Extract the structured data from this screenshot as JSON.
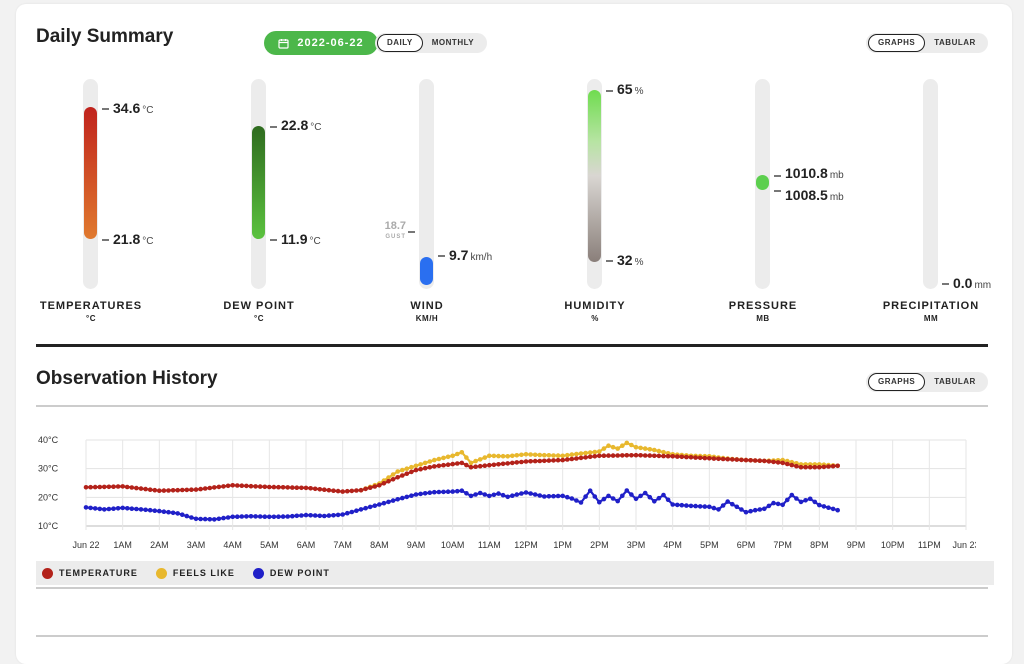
{
  "summary": {
    "title": "Daily Summary",
    "date": "2022-06-22",
    "period_toggle": {
      "daily": "DAILY",
      "monthly": "MONTHLY",
      "selected": "DAILY"
    },
    "view_toggle": {
      "graphs": "GRAPHS",
      "tabular": "TABULAR",
      "selected": "GRAPHS"
    }
  },
  "gauges": [
    {
      "label": "TEMPERATURES",
      "unit_label": "°C",
      "high": "34.6",
      "low": "21.8",
      "unit": "°C",
      "color_top": "#c0231d",
      "color_bottom": "#e07a2f"
    },
    {
      "label": "DEW POINT",
      "unit_label": "°C",
      "high": "22.8",
      "low": "11.9",
      "unit": "°C",
      "color_top": "#2f6b1f",
      "color_bottom": "#5bc23f"
    },
    {
      "label": "WIND",
      "unit_label": "KM/H",
      "value": "9.7",
      "unit": "km/h",
      "gust_value": "18.7",
      "gust_label": "GUST",
      "color": "#2a6ff0"
    },
    {
      "label": "HUMIDITY",
      "unit_label": "%",
      "high": "65",
      "low": "32",
      "unit": "%",
      "color_top": "#6fdc4f",
      "color_bottom": "#8a7f7a"
    },
    {
      "label": "PRESSURE",
      "unit_label": "MB",
      "high": "1010.8",
      "low": "1008.5",
      "unit": "mb",
      "color": "#5ccf4e"
    },
    {
      "label": "PRECIPITATION",
      "unit_label": "MM",
      "value": "0.0",
      "unit": "mm"
    }
  ],
  "history": {
    "title": "Observation History",
    "view_toggle": {
      "graphs": "GRAPHS",
      "tabular": "TABULAR",
      "selected": "GRAPHS"
    }
  },
  "chart_data": {
    "type": "line",
    "x_unit": "hour of Jun 22",
    "x_ticks": [
      "Jun 22",
      "1AM",
      "2AM",
      "3AM",
      "4AM",
      "5AM",
      "6AM",
      "7AM",
      "8AM",
      "9AM",
      "10AM",
      "11AM",
      "12PM",
      "1PM",
      "2PM",
      "3PM",
      "4PM",
      "5PM",
      "6PM",
      "7PM",
      "8PM",
      "9PM",
      "10PM",
      "11PM",
      "Jun 23"
    ],
    "xlim": [
      0,
      24
    ],
    "y_ticks": [
      "40°C",
      "30°C",
      "20°C",
      "10°C"
    ],
    "ylim": [
      10,
      40
    ],
    "grid": true,
    "legend_placement": "bottom-left",
    "series": [
      {
        "name": "TEMPERATURE",
        "color": "#b3221a",
        "x": [
          0,
          1,
          2,
          3,
          4,
          5,
          6,
          7,
          7.5,
          8,
          8.5,
          9,
          9.5,
          10,
          10.25,
          10.5,
          11,
          12,
          13,
          14,
          15,
          16,
          17,
          18,
          18.5,
          19,
          19.5,
          20,
          20.5
        ],
        "y": [
          23.5,
          23.8,
          22.3,
          22.7,
          24.2,
          23.6,
          23.3,
          22,
          22.5,
          24.2,
          27,
          29.5,
          30.8,
          31.6,
          32,
          30.5,
          31.2,
          32.5,
          33,
          34.5,
          34.7,
          34.3,
          33.6,
          33,
          32.7,
          32,
          30.5,
          30.5,
          31
        ]
      },
      {
        "name": "FEELS LIKE",
        "color": "#e8b82e",
        "x": [
          7.5,
          8,
          8.5,
          9,
          9.5,
          10,
          10.25,
          10.5,
          11,
          11.5,
          12,
          12.5,
          13,
          13.5,
          14,
          14.25,
          14.5,
          14.75,
          15,
          15.5,
          16,
          16.5,
          17,
          17.5,
          18,
          18.5,
          19,
          19.5,
          20,
          20.5
        ],
        "y": [
          22.5,
          24.8,
          29,
          31,
          33,
          34.5,
          35.7,
          32,
          34.5,
          34.3,
          35,
          34.7,
          34.5,
          35.3,
          36,
          38,
          37,
          39,
          37.5,
          36.5,
          35,
          34.5,
          34.3,
          33.5,
          33,
          32.7,
          33,
          31.5,
          31.5,
          31
        ]
      },
      {
        "name": "DEW POINT",
        "color": "#2020c8",
        "x": [
          0,
          0.5,
          1,
          1.5,
          2,
          2.5,
          3,
          3.5,
          4,
          4.5,
          5,
          5.5,
          6,
          6.5,
          7,
          7.5,
          8,
          8.5,
          9,
          9.5,
          10,
          10.25,
          10.5,
          10.75,
          11,
          11.25,
          11.5,
          12,
          12.5,
          13,
          13.25,
          13.5,
          13.75,
          14,
          14.25,
          14.5,
          14.75,
          15,
          15.25,
          15.5,
          15.75,
          16,
          16.5,
          17,
          17.25,
          17.5,
          17.75,
          18,
          18.25,
          18.5,
          18.75,
          19,
          19.25,
          19.5,
          19.75,
          20,
          20.5
        ],
        "y": [
          16.5,
          15.8,
          16.3,
          15.8,
          15.2,
          14.4,
          12.5,
          12.3,
          13.2,
          13.4,
          13.2,
          13.3,
          13.8,
          13.5,
          14,
          15.8,
          17.5,
          19.3,
          21,
          21.8,
          22,
          22.3,
          20.5,
          21.5,
          20.5,
          21.3,
          20.2,
          21.7,
          20.3,
          20.5,
          19.6,
          18.2,
          22.3,
          18.3,
          20.5,
          18.7,
          22.4,
          19.5,
          21.5,
          18.6,
          20.8,
          17.5,
          17,
          16.7,
          15.8,
          18.5,
          16.7,
          14.8,
          15.5,
          16,
          18,
          17.4,
          20.8,
          18.4,
          19.5,
          17.3,
          15.5
        ]
      }
    ]
  }
}
